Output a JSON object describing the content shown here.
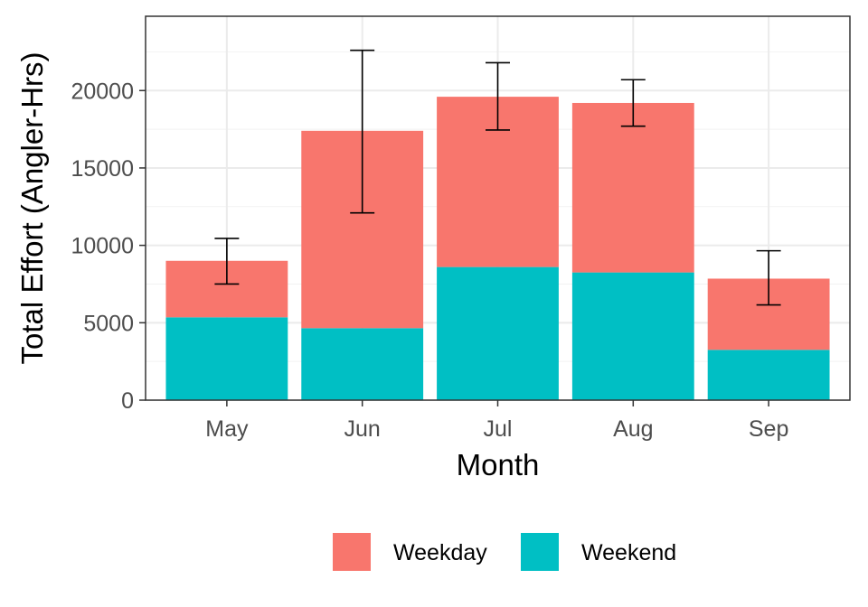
{
  "chart_data": {
    "type": "bar",
    "stacked": true,
    "categories": [
      "May",
      "Jun",
      "Jul",
      "Aug",
      "Sep"
    ],
    "series": [
      {
        "name": "Weekend",
        "color": "#00BFC4",
        "values": [
          5350,
          4650,
          8600,
          8250,
          3250
        ]
      },
      {
        "name": "Weekday",
        "color": "#F8766D",
        "values": [
          3650,
          12750,
          11000,
          10950,
          4600
        ]
      }
    ],
    "error_bars": {
      "lower": [
        7500,
        12100,
        17450,
        17700,
        6150
      ],
      "upper": [
        10450,
        22600,
        21800,
        20700,
        9650
      ]
    },
    "xlabel": "Month",
    "ylabel": "Total Effort (Angler-Hrs)",
    "yticks": [
      0,
      5000,
      10000,
      15000,
      20000
    ],
    "ylim": [
      0,
      24800
    ],
    "grid": true,
    "legend_position": "bottom",
    "legend_order": [
      "Weekday",
      "Weekend"
    ]
  }
}
